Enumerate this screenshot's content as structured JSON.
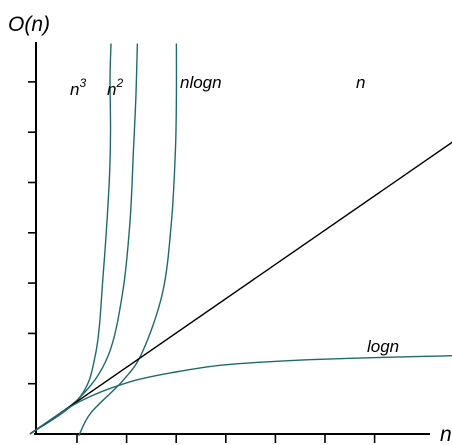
{
  "chart_data": {
    "type": "line",
    "ylabel": "O(n)",
    "xlabel": "n",
    "colors": {
      "curve": "#1f6b6b",
      "axis": "#000000",
      "linear": "#000000"
    },
    "series": [
      {
        "name": "n3",
        "label_base": "n",
        "label_exp": "3",
        "points": [
          [
            0,
            0
          ],
          [
            1,
            1
          ],
          [
            1.35,
            2.3
          ],
          [
            1.5,
            4.5
          ],
          [
            1.62,
            7
          ],
          [
            1.65,
            8.5
          ],
          [
            1.64,
            10
          ],
          [
            1.66,
            11
          ]
        ]
      },
      {
        "name": "n2",
        "label_base": "n",
        "label_exp": "2",
        "points": [
          [
            0,
            0
          ],
          [
            1,
            1
          ],
          [
            1.6,
            2.2
          ],
          [
            1.9,
            4
          ],
          [
            2.05,
            6
          ],
          [
            2.12,
            8
          ],
          [
            2.17,
            9.5
          ],
          [
            2.2,
            11
          ]
        ]
      },
      {
        "name": "nlogn",
        "label": "nlogn",
        "points": [
          [
            1,
            -0.05
          ],
          [
            1.25,
            0.6
          ],
          [
            1.9,
            1.5
          ],
          [
            2.3,
            2.3
          ],
          [
            2.72,
            4
          ],
          [
            2.9,
            6
          ],
          [
            2.98,
            8
          ],
          [
            3,
            9.5
          ],
          [
            3,
            11
          ]
        ]
      },
      {
        "name": "n",
        "label": "n",
        "points": [
          [
            0,
            0
          ],
          [
            10,
            9.5
          ]
        ]
      },
      {
        "name": "logn",
        "label": "logn",
        "points": [
          [
            0,
            0
          ],
          [
            1,
            0.9
          ],
          [
            2,
            1.45
          ],
          [
            3,
            1.75
          ],
          [
            4,
            1.95
          ],
          [
            5.5,
            2.08
          ],
          [
            7,
            2.15
          ],
          [
            8.5,
            2.2
          ],
          [
            10,
            2.25
          ]
        ]
      }
    ]
  }
}
